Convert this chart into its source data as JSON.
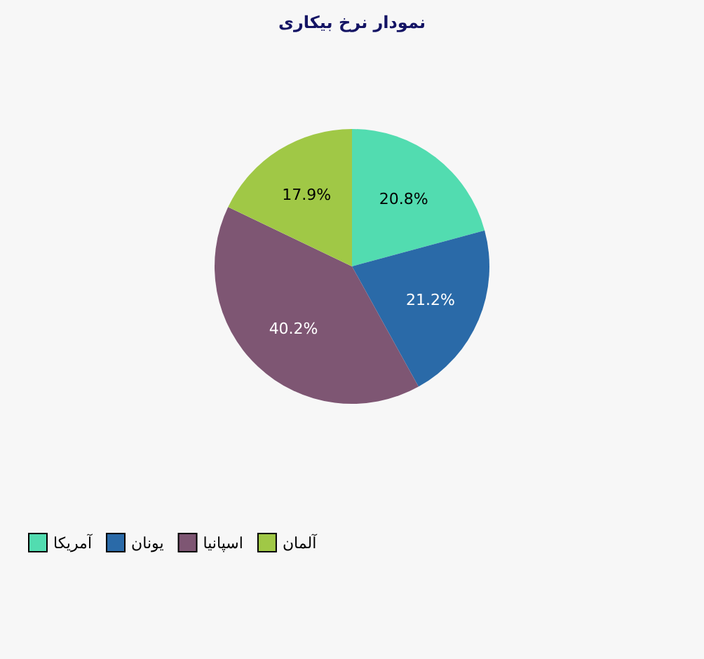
{
  "chart_data": {
    "type": "pie",
    "title": "نمودار نرخ بیکاری",
    "categories": [
      "آمریکا",
      "یونان",
      "اسپانیا",
      "آلمان"
    ],
    "values": [
      20.8,
      21.2,
      40.2,
      17.9
    ],
    "colors": [
      "#52dcb0",
      "#2a6aa8",
      "#7e5673",
      "#a0c846"
    ],
    "value_labels": [
      "20.8%",
      "21.2%",
      "40.2%",
      "17.9%"
    ],
    "legend": "bottom left"
  }
}
